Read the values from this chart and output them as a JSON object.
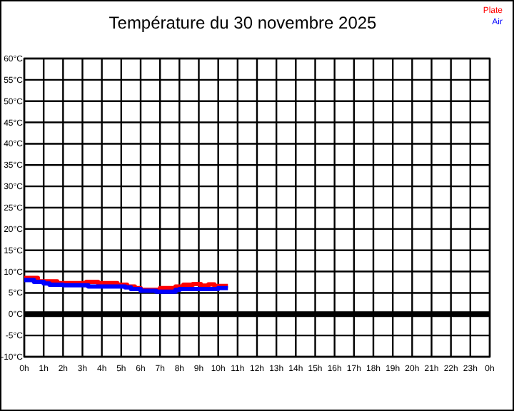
{
  "chart_data": {
    "type": "step",
    "title": "Température du 30 novembre 2025",
    "series": [
      {
        "name": "Plate",
        "color": "#ff0000",
        "x": [
          "2025-11-30T00:00",
          "2025-11-30T00:42",
          "2025-11-30T01:42",
          "2025-11-30T03:12",
          "2025-11-30T03:48",
          "2025-11-30T04:48",
          "2025-11-30T05:18",
          "2025-11-30T05:42",
          "2025-11-30T06:00",
          "2025-11-30T07:00",
          "2025-11-30T07:48",
          "2025-11-30T08:12",
          "2025-11-30T08:42",
          "2025-11-30T09:06",
          "2025-11-30T09:30",
          "2025-11-30T09:48",
          "2025-11-30T10:30"
        ],
        "values": [
          8.5,
          7.7,
          7.3,
          7.6,
          7.3,
          6.9,
          6.5,
          6.1,
          5.7,
          6.1,
          6.5,
          6.9,
          7.1,
          6.7,
          7,
          6.6,
          6.6
        ]
      },
      {
        "name": "Air",
        "color": "#0000ff",
        "x": [
          "2025-11-30T00:00",
          "2025-11-30T00:30",
          "2025-11-30T01:00",
          "2025-11-30T01:18",
          "2025-11-30T02:00",
          "2025-11-30T03:18",
          "2025-11-30T05:12",
          "2025-11-30T05:30",
          "2025-11-30T06:00",
          "2025-11-30T06:48",
          "2025-11-30T07:48",
          "2025-11-30T08:00",
          "2025-11-30T10:00",
          "2025-11-30T10:30"
        ],
        "values": [
          8,
          7.6,
          7.2,
          6.9,
          6.8,
          6.5,
          6.3,
          5.9,
          5.5,
          5.3,
          5.7,
          5.9,
          6.1,
          6.1
        ]
      }
    ],
    "xlim": [
      "2025-11-30T00:00",
      "2025-12-01T00:00"
    ],
    "xticks": [
      {
        "value": "2025-11-30T00:00",
        "label": "0h"
      },
      {
        "value": "2025-11-30T01:00",
        "label": "1h"
      },
      {
        "value": "2025-11-30T02:00",
        "label": "2h"
      },
      {
        "value": "2025-11-30T03:00",
        "label": "3h"
      },
      {
        "value": "2025-11-30T04:00",
        "label": "4h"
      },
      {
        "value": "2025-11-30T05:00",
        "label": "5h"
      },
      {
        "value": "2025-11-30T06:00",
        "label": "6h"
      },
      {
        "value": "2025-11-30T07:00",
        "label": "7h"
      },
      {
        "value": "2025-11-30T08:00",
        "label": "8h"
      },
      {
        "value": "2025-11-30T09:00",
        "label": "9h"
      },
      {
        "value": "2025-11-30T10:00",
        "label": "10h"
      },
      {
        "value": "2025-11-30T11:00",
        "label": "11h"
      },
      {
        "value": "2025-11-30T12:00",
        "label": "12h"
      },
      {
        "value": "2025-11-30T13:00",
        "label": "13h"
      },
      {
        "value": "2025-11-30T14:00",
        "label": "14h"
      },
      {
        "value": "2025-11-30T15:00",
        "label": "15h"
      },
      {
        "value": "2025-11-30T16:00",
        "label": "16h"
      },
      {
        "value": "2025-11-30T17:00",
        "label": "17h"
      },
      {
        "value": "2025-11-30T18:00",
        "label": "18h"
      },
      {
        "value": "2025-11-30T19:00",
        "label": "19h"
      },
      {
        "value": "2025-11-30T20:00",
        "label": "20h"
      },
      {
        "value": "2025-11-30T21:00",
        "label": "21h"
      },
      {
        "value": "2025-11-30T22:00",
        "label": "22h"
      },
      {
        "value": "2025-11-30T23:00",
        "label": "23h"
      },
      {
        "value": "2025-12-01T00:00",
        "label": "0h"
      }
    ],
    "ylim": [
      -10,
      60
    ],
    "yticks": [
      {
        "value": -10,
        "label": "-10°C"
      },
      {
        "value": -5,
        "label": "-5°C"
      },
      {
        "value": 0,
        "label": "0°C"
      },
      {
        "value": 5,
        "label": "5°C"
      },
      {
        "value": 10,
        "label": "10°C"
      },
      {
        "value": 15,
        "label": "15°C"
      },
      {
        "value": 20,
        "label": "20°C"
      },
      {
        "value": 25,
        "label": "25°C"
      },
      {
        "value": 30,
        "label": "30°C"
      },
      {
        "value": 35,
        "label": "35°C"
      },
      {
        "value": 40,
        "label": "40°C"
      },
      {
        "value": 45,
        "label": "45°C"
      },
      {
        "value": 50,
        "label": "50°C"
      },
      {
        "value": 55,
        "label": "55°C"
      },
      {
        "value": 60,
        "label": "60°C"
      }
    ],
    "grid": true,
    "legend": "top right",
    "ref_lines": [
      {
        "axis": "y",
        "value": 0,
        "color": "#000000"
      }
    ]
  }
}
